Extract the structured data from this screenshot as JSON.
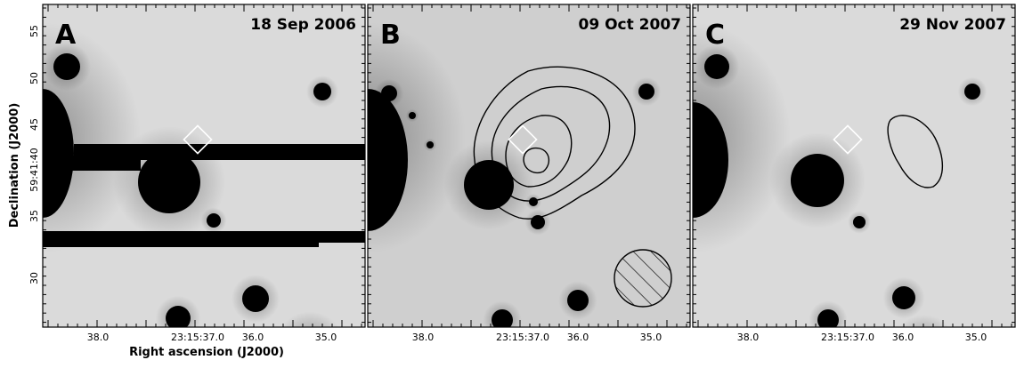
{
  "figure": {
    "panels": [
      {
        "letter": "A",
        "date": "18 Sep 2006"
      },
      {
        "letter": "B",
        "date": "09 Oct 2007"
      },
      {
        "letter": "C",
        "date": "29 Nov 2007"
      }
    ],
    "x_tick_labels": [
      "38.0",
      "23:15:37.0",
      "36.0",
      "35.0"
    ],
    "y_tick_labels": [
      "55",
      "50",
      "45",
      "59:41:40",
      "35",
      "30"
    ],
    "x_axis_label": "Right ascension (J2000)",
    "y_axis_label": "Declination (J2000)"
  }
}
